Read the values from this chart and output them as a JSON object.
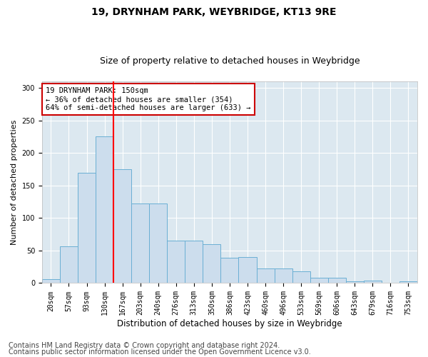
{
  "title": "19, DRYNHAM PARK, WEYBRIDGE, KT13 9RE",
  "subtitle": "Size of property relative to detached houses in Weybridge",
  "xlabel": "Distribution of detached houses by size in Weybridge",
  "ylabel": "Number of detached properties",
  "bin_labels": [
    "20sqm",
    "57sqm",
    "93sqm",
    "130sqm",
    "167sqm",
    "203sqm",
    "240sqm",
    "276sqm",
    "313sqm",
    "350sqm",
    "386sqm",
    "423sqm",
    "460sqm",
    "496sqm",
    "533sqm",
    "569sqm",
    "606sqm",
    "643sqm",
    "679sqm",
    "716sqm",
    "753sqm"
  ],
  "bar_values": [
    6,
    57,
    170,
    225,
    175,
    122,
    122,
    65,
    65,
    60,
    39,
    40,
    23,
    23,
    18,
    8,
    8,
    3,
    4,
    0,
    3
  ],
  "bar_color": "#ccdded",
  "bar_edge_color": "#6aafd4",
  "red_line_x": 3.5,
  "annotation_text": "19 DRYNHAM PARK: 150sqm\n← 36% of detached houses are smaller (354)\n64% of semi-detached houses are larger (633) →",
  "annotation_box_facecolor": "#ffffff",
  "annotation_box_edgecolor": "#cc0000",
  "ylim": [
    0,
    310
  ],
  "yticks": [
    0,
    50,
    100,
    150,
    200,
    250,
    300
  ],
  "footer_line1": "Contains HM Land Registry data © Crown copyright and database right 2024.",
  "footer_line2": "Contains public sector information licensed under the Open Government Licence v3.0.",
  "fig_facecolor": "#ffffff",
  "plot_bg_color": "#dce8f0",
  "grid_color": "#ffffff",
  "title_fontsize": 10,
  "subtitle_fontsize": 9,
  "xlabel_fontsize": 8.5,
  "ylabel_fontsize": 8,
  "footer_fontsize": 7,
  "tick_fontsize": 7,
  "annotation_fontsize": 7.5
}
